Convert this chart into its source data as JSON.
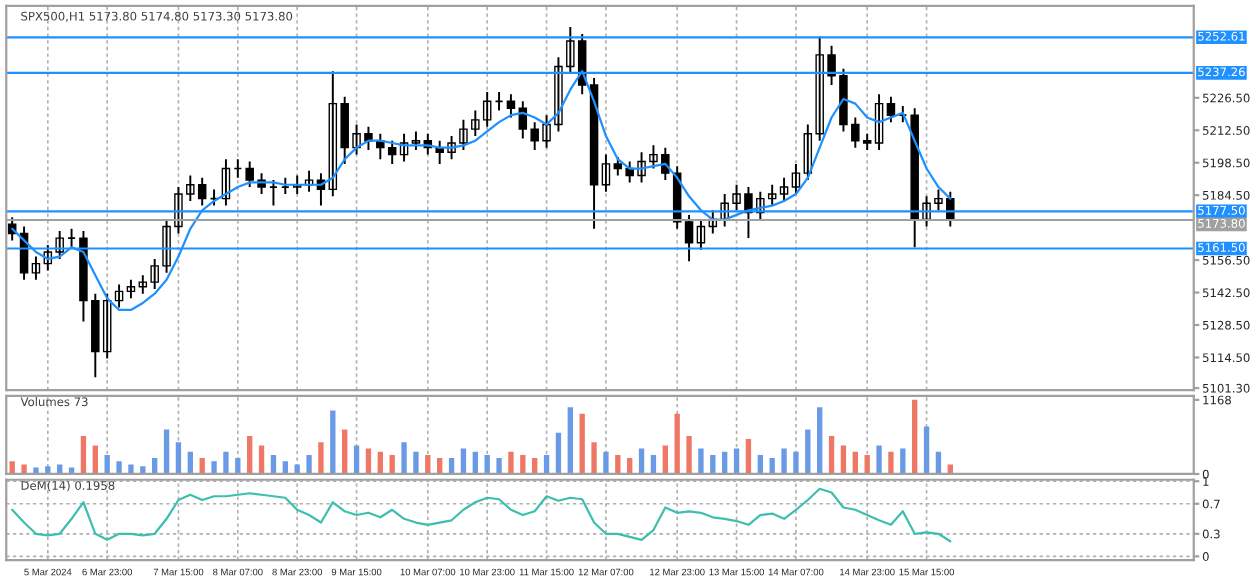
{
  "chart_data": [
    {
      "type": "candlestick",
      "title": "SPX500,H1 5173.80 5174.80 5173.30 5173.80",
      "ohlc": [
        [
          5172,
          5175,
          5165,
          5168
        ],
        [
          5168,
          5171,
          5148,
          5151
        ],
        [
          5151,
          5158,
          5148,
          5155
        ],
        [
          5155,
          5163,
          5152,
          5160
        ],
        [
          5160,
          5169,
          5157,
          5166
        ],
        [
          5166,
          5170,
          5162,
          5166
        ],
        [
          5166,
          5169,
          5130,
          5139
        ],
        [
          5139,
          5142,
          5106,
          5117
        ],
        [
          5117,
          5142,
          5114,
          5139
        ],
        [
          5139,
          5146,
          5136,
          5143
        ],
        [
          5143,
          5148,
          5140,
          5145
        ],
        [
          5145,
          5150,
          5142,
          5147
        ],
        [
          5147,
          5157,
          5144,
          5154
        ],
        [
          5154,
          5174,
          5151,
          5171
        ],
        [
          5171,
          5188,
          5168,
          5185
        ],
        [
          5185,
          5193,
          5182,
          5189
        ],
        [
          5189,
          5192,
          5180,
          5183
        ],
        [
          5183,
          5187,
          5180,
          5183
        ],
        [
          5183,
          5200,
          5180,
          5196
        ],
        [
          5196,
          5200,
          5192,
          5196
        ],
        [
          5196,
          5199,
          5188,
          5191
        ],
        [
          5191,
          5194,
          5185,
          5188
        ],
        [
          5188,
          5191,
          5180,
          5188
        ],
        [
          5188,
          5192,
          5185,
          5188
        ],
        [
          5188,
          5193,
          5185,
          5189
        ],
        [
          5189,
          5195,
          5186,
          5191
        ],
        [
          5191,
          5194,
          5180,
          5187
        ],
        [
          5187,
          5238,
          5184,
          5224
        ],
        [
          5224,
          5227,
          5198,
          5205
        ],
        [
          5205,
          5215,
          5202,
          5211
        ],
        [
          5211,
          5214,
          5204,
          5208
        ],
        [
          5208,
          5211,
          5200,
          5205
        ],
        [
          5205,
          5208,
          5198,
          5202
        ],
        [
          5202,
          5211,
          5199,
          5207
        ],
        [
          5207,
          5212,
          5204,
          5208
        ],
        [
          5208,
          5211,
          5202,
          5205
        ],
        [
          5205,
          5208,
          5198,
          5203
        ],
        [
          5203,
          5210,
          5200,
          5207
        ],
        [
          5207,
          5217,
          5204,
          5213
        ],
        [
          5213,
          5221,
          5210,
          5217
        ],
        [
          5217,
          5229,
          5214,
          5225
        ],
        [
          5225,
          5229,
          5221,
          5225
        ],
        [
          5225,
          5228,
          5218,
          5222
        ],
        [
          5222,
          5225,
          5209,
          5213
        ],
        [
          5213,
          5216,
          5204,
          5208
        ],
        [
          5208,
          5219,
          5205,
          5215
        ],
        [
          5215,
          5244,
          5212,
          5240
        ],
        [
          5240,
          5257,
          5237,
          5251
        ],
        [
          5251,
          5254,
          5228,
          5232
        ],
        [
          5232,
          5235,
          5170,
          5189
        ],
        [
          5189,
          5202,
          5186,
          5198
        ],
        [
          5198,
          5201,
          5193,
          5196
        ],
        [
          5196,
          5199,
          5190,
          5193
        ],
        [
          5193,
          5203,
          5190,
          5199
        ],
        [
          5199,
          5206,
          5196,
          5202
        ],
        [
          5202,
          5205,
          5191,
          5194
        ],
        [
          5194,
          5197,
          5170,
          5173
        ],
        [
          5173,
          5176,
          5156,
          5164
        ],
        [
          5164,
          5174,
          5161,
          5171
        ],
        [
          5171,
          5178,
          5168,
          5174
        ],
        [
          5174,
          5185,
          5171,
          5181
        ],
        [
          5181,
          5189,
          5178,
          5185
        ],
        [
          5185,
          5188,
          5166,
          5177
        ],
        [
          5177,
          5186,
          5174,
          5183
        ],
        [
          5183,
          5189,
          5180,
          5185
        ],
        [
          5185,
          5192,
          5182,
          5188
        ],
        [
          5188,
          5198,
          5185,
          5194
        ],
        [
          5194,
          5215,
          5191,
          5211
        ],
        [
          5211,
          5253,
          5208,
          5245
        ],
        [
          5245,
          5249,
          5232,
          5236
        ],
        [
          5236,
          5239,
          5212,
          5215
        ],
        [
          5215,
          5218,
          5205,
          5208
        ],
        [
          5208,
          5211,
          5204,
          5207
        ],
        [
          5207,
          5228,
          5204,
          5224
        ],
        [
          5224,
          5227,
          5216,
          5219
        ],
        [
          5219,
          5223,
          5216,
          5219
        ],
        [
          5219,
          5222,
          5162,
          5174
        ],
        [
          5174,
          5184,
          5171,
          5181
        ],
        [
          5181,
          5187,
          5178,
          5183
        ],
        [
          5183,
          5186,
          5171,
          5173.8
        ],
        null,
        null,
        null,
        null,
        null,
        null,
        null,
        null,
        null,
        null,
        null,
        null,
        null,
        null,
        null,
        null,
        null,
        null,
        null,
        null
      ],
      "series": [
        {
          "type": "line",
          "color": "#1e90ff",
          "values": [
            5170,
            5165,
            5160,
            5157,
            5158,
            5162,
            5160,
            5150,
            5140,
            5135,
            5135,
            5138,
            5142,
            5148,
            5158,
            5170,
            5178,
            5182,
            5185,
            5188,
            5190,
            5190,
            5190,
            5189,
            5189,
            5189,
            5189,
            5192,
            5200,
            5205,
            5208,
            5208,
            5207,
            5206,
            5206,
            5206,
            5205,
            5205,
            5206,
            5208,
            5212,
            5216,
            5219,
            5220,
            5218,
            5215,
            5220,
            5230,
            5238,
            5225,
            5210,
            5200,
            5196,
            5196,
            5197,
            5198,
            5192,
            5184,
            5178,
            5174,
            5174,
            5176,
            5178,
            5179,
            5180,
            5182,
            5185,
            5192,
            5205,
            5218,
            5226,
            5224,
            5218,
            5216,
            5218,
            5220,
            5208,
            5196,
            5188,
            5183,
            null,
            null,
            null,
            null,
            null,
            null,
            null,
            null,
            null,
            null,
            null,
            null,
            null,
            null,
            null,
            null,
            null,
            null,
            null,
            null
          ]
        }
      ],
      "ref_lines": [
        {
          "axis": "y",
          "value": 5252.61,
          "label": "5252.61",
          "color": "#1e90ff"
        },
        {
          "axis": "y",
          "value": 5237.26,
          "label": "5237.26",
          "color": "#1e90ff"
        },
        {
          "axis": "y",
          "value": 5177.5,
          "label": "5177.50",
          "color": "#1e90ff"
        },
        {
          "axis": "y",
          "value": 5173.8,
          "label": "5173.80",
          "color": "#a0a0a0"
        },
        {
          "axis": "y",
          "value": 5161.5,
          "label": "5161.50",
          "color": "#1e90ff"
        }
      ],
      "ylim": [
        5100.4,
        5266.2
      ],
      "yticks": [
        {
          "value": 5101.3,
          "label": "5101.30"
        },
        {
          "value": 5114.5,
          "label": "5114.50"
        },
        {
          "value": 5128.5,
          "label": "5128.50"
        },
        {
          "value": 5142.5,
          "label": "5142.50"
        },
        {
          "value": 5156.5,
          "label": "5156.50"
        },
        {
          "value": 5184.5,
          "label": "5184.50"
        },
        {
          "value": 5198.5,
          "label": "5198.50"
        },
        {
          "value": 5212.5,
          "label": "5212.50"
        },
        {
          "value": 5226.5,
          "label": "5226.50"
        }
      ],
      "grid": "x",
      "tick_labels": "y"
    },
    {
      "type": "bar",
      "title": "Volumes 73",
      "values": [
        200,
        150,
        100,
        120,
        150,
        100,
        600,
        450,
        300,
        200,
        150,
        120,
        250,
        700,
        500,
        350,
        250,
        200,
        350,
        250,
        600,
        450,
        300,
        200,
        150,
        300,
        500,
        1000,
        700,
        450,
        400,
        350,
        300,
        500,
        350,
        300,
        250,
        250,
        400,
        350,
        300,
        250,
        350,
        300,
        250,
        300,
        650,
        1050,
        950,
        500,
        350,
        300,
        250,
        400,
        300,
        450,
        950,
        600,
        400,
        300,
        350,
        400,
        550,
        300,
        250,
        400,
        350,
        700,
        1050,
        600,
        450,
        350,
        300,
        450,
        350,
        400,
        1168,
        750,
        350,
        150,
        null,
        null,
        null,
        null,
        null,
        null,
        null,
        null,
        null,
        null,
        null,
        null,
        null,
        null,
        null,
        null,
        null,
        null,
        null,
        null
      ],
      "colors": [
        "#ee7766",
        "#ee7766",
        "#6a9ae6",
        "#6a9ae6",
        "#6a9ae6",
        "#6a9ae6",
        "#ee7766",
        "#ee7766",
        "#6a9ae6",
        "#6a9ae6",
        "#6a9ae6",
        "#6a9ae6",
        "#6a9ae6",
        "#6a9ae6",
        "#6a9ae6",
        "#6a9ae6",
        "#ee7766",
        "#6a9ae6",
        "#6a9ae6",
        "#6a9ae6",
        "#ee7766",
        "#ee7766",
        "#6a9ae6",
        "#6a9ae6",
        "#6a9ae6",
        "#6a9ae6",
        "#ee7766",
        "#6a9ae6",
        "#ee7766",
        "#6a9ae6",
        "#ee7766",
        "#ee7766",
        "#ee7766",
        "#6a9ae6",
        "#6a9ae6",
        "#ee7766",
        "#ee7766",
        "#6a9ae6",
        "#6a9ae6",
        "#6a9ae6",
        "#6a9ae6",
        "#6a9ae6",
        "#ee7766",
        "#ee7766",
        "#ee7766",
        "#6a9ae6",
        "#6a9ae6",
        "#6a9ae6",
        "#ee7766",
        "#ee7766",
        "#6a9ae6",
        "#ee7766",
        "#ee7766",
        "#6a9ae6",
        "#6a9ae6",
        "#ee7766",
        "#ee7766",
        "#ee7766",
        "#6a9ae6",
        "#6a9ae6",
        "#6a9ae6",
        "#6a9ae6",
        "#ee7766",
        "#6a9ae6",
        "#6a9ae6",
        "#6a9ae6",
        "#6a9ae6",
        "#6a9ae6",
        "#6a9ae6",
        "#ee7766",
        "#ee7766",
        "#ee7766",
        "#ee7766",
        "#6a9ae6",
        "#ee7766",
        "#6a9ae6",
        "#ee7766",
        "#6a9ae6",
        "#6a9ae6",
        "#ee7766",
        null,
        null,
        null,
        null,
        null,
        null,
        null,
        null,
        null,
        null,
        null,
        null,
        null,
        null,
        null,
        null,
        null,
        null,
        null,
        null
      ],
      "ylim": [
        0,
        1230
      ],
      "yticks": [
        0,
        1168
      ],
      "grid": "x",
      "tick_labels": "y"
    },
    {
      "type": "line",
      "title": "DeM(14) 0.1958",
      "categories": [
        null,
        null,
        null,
        "5 Mar 2024",
        null,
        null,
        null,
        null,
        "6 Mar 23:00",
        null,
        null,
        null,
        null,
        null,
        "7 Mar 15:00",
        null,
        null,
        null,
        null,
        "8 Mar 07:00",
        null,
        null,
        null,
        null,
        "8 Mar 23:00",
        null,
        null,
        null,
        null,
        "9 Mar 15:00",
        null,
        null,
        null,
        null,
        null,
        "10 Mar 07:00",
        null,
        null,
        null,
        null,
        "10 Mar 23:00",
        null,
        null,
        null,
        null,
        "11 Mar 15:00",
        null,
        null,
        null,
        null,
        "12 Mar 07:00",
        null,
        null,
        null,
        null,
        null,
        "12 Mar 23:00",
        null,
        null,
        null,
        null,
        "13 Mar 15:00",
        null,
        null,
        null,
        null,
        "14 Mar 07:00",
        null,
        null,
        null,
        null,
        null,
        "14 Mar 23:00",
        null,
        null,
        null,
        null,
        "15 Mar 15:00",
        null,
        null,
        null,
        null,
        null,
        null,
        null,
        null,
        null,
        null,
        null,
        null,
        null,
        null,
        null,
        null,
        null,
        null,
        null,
        null,
        null,
        null
      ],
      "series": [
        {
          "color": "#3cbfae",
          "values": [
            0.62,
            0.45,
            0.3,
            0.28,
            0.3,
            0.5,
            0.72,
            0.3,
            0.22,
            0.3,
            0.3,
            0.28,
            0.3,
            0.5,
            0.75,
            0.82,
            0.75,
            0.8,
            0.8,
            0.82,
            0.84,
            0.82,
            0.8,
            0.78,
            0.62,
            0.55,
            0.45,
            0.72,
            0.6,
            0.55,
            0.58,
            0.52,
            0.62,
            0.5,
            0.45,
            0.42,
            0.45,
            0.48,
            0.62,
            0.72,
            0.78,
            0.76,
            0.62,
            0.55,
            0.6,
            0.8,
            0.74,
            0.78,
            0.76,
            0.45,
            0.3,
            0.3,
            0.26,
            0.22,
            0.35,
            0.65,
            0.58,
            0.6,
            0.58,
            0.52,
            0.5,
            0.47,
            0.42,
            0.55,
            0.57,
            0.5,
            0.62,
            0.75,
            0.9,
            0.85,
            0.65,
            0.62,
            0.55,
            0.48,
            0.42,
            0.6,
            0.3,
            0.32,
            0.3,
            0.2,
            null,
            null,
            null,
            null,
            null,
            null,
            null,
            null,
            null,
            null,
            null,
            null,
            null,
            null,
            null,
            null,
            null,
            null,
            null,
            null
          ]
        }
      ],
      "ylim": [
        -0.05,
        1.02
      ],
      "yticks": [
        0,
        0.3,
        0.7,
        1
      ],
      "grid": true,
      "line_style": "solid",
      "marker": "none"
    }
  ]
}
